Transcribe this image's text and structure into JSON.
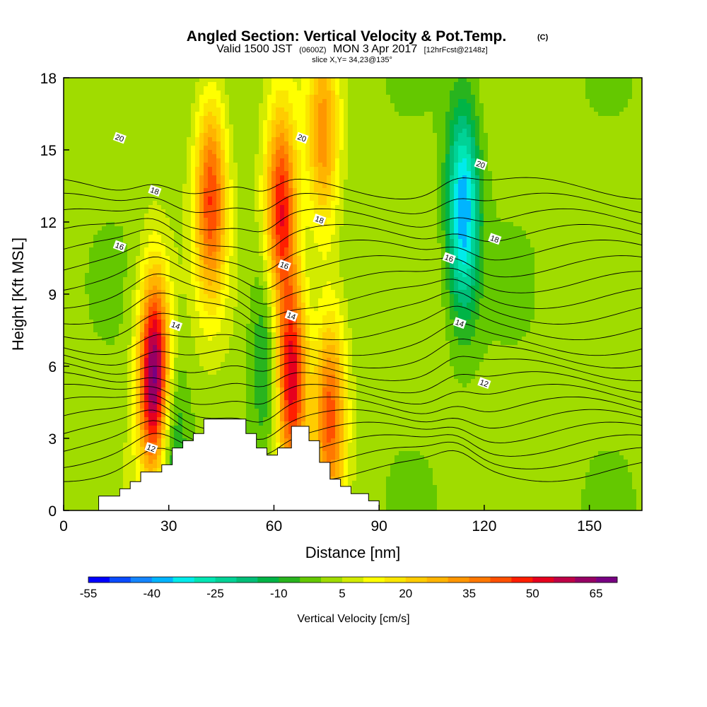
{
  "chart_data": {
    "type": "heatmap",
    "title": "Angled Section: Vertical Velocity & Pot.Temp.",
    "title_unit": "(C)",
    "subtitle": {
      "part1": "Valid 1500 JST",
      "part2": "(0600Z)",
      "part3": "MON 3 Apr 2017",
      "part4": "[12hrFcst@2148z]"
    },
    "slice_info": "slice X,Y= 34,23@135°",
    "xlabel": "Distance [nm]",
    "ylabel": "Height [Kft MSL]",
    "xlim": [
      0,
      165
    ],
    "ylim": [
      0,
      18
    ],
    "x_ticks": [
      "0",
      "30",
      "60",
      "90",
      "120",
      "150"
    ],
    "y_ticks": [
      "0",
      "3",
      "6",
      "9",
      "12",
      "15",
      "18"
    ],
    "colorbar": {
      "title": "Vertical Velocity [cm/s]",
      "labels": [
        "-55",
        "-40",
        "-25",
        "-10",
        "5",
        "20",
        "35",
        "50",
        "65"
      ],
      "colors": [
        "#0000ff",
        "#0a4bff",
        "#1485ff",
        "#00b4ff",
        "#00ebeb",
        "#00e6b4",
        "#00d296",
        "#00be78",
        "#00b446",
        "#28b41e",
        "#64c800",
        "#a0dc00",
        "#d2eb00",
        "#ffff00",
        "#fae600",
        "#ffcc00",
        "#ffb400",
        "#ff9600",
        "#ff7800",
        "#ff5000",
        "#ff1e00",
        "#e6001e",
        "#be0046",
        "#960064",
        "#780082"
      ]
    },
    "updrafts": [
      {
        "x": 26,
        "z": 5.5,
        "w": 70
      },
      {
        "x": 65,
        "z": 5.5,
        "w": 52
      },
      {
        "x": 76,
        "z": 4,
        "w": 40
      },
      {
        "x": 62,
        "z": 12.5,
        "w": 48
      },
      {
        "x": 42,
        "z": 13,
        "w": 42
      },
      {
        "x": 74,
        "z": 15.5,
        "w": 30
      }
    ],
    "downdrafts": [
      {
        "x": 114,
        "z": 12.5,
        "w": -42
      },
      {
        "x": 58,
        "z": 6.5,
        "w": -15
      },
      {
        "x": 30,
        "z": 3,
        "w": -20
      }
    ],
    "terrain": [
      [
        10,
        0.6
      ],
      [
        16,
        0.9
      ],
      [
        19,
        1.2
      ],
      [
        22,
        1.6
      ],
      [
        28,
        1.9
      ],
      [
        31,
        2.6
      ],
      [
        34,
        2.9
      ],
      [
        37,
        3.2
      ],
      [
        40,
        3.8
      ],
      [
        52,
        3.2
      ],
      [
        55,
        2.6
      ],
      [
        58,
        2.3
      ],
      [
        61,
        2.6
      ],
      [
        65,
        3.5
      ],
      [
        70,
        2.9
      ],
      [
        73,
        2.0
      ],
      [
        76,
        1.3
      ],
      [
        79,
        1.0
      ],
      [
        82,
        0.7
      ],
      [
        87,
        0.4
      ],
      [
        90,
        0
      ]
    ],
    "isentropes": [
      {
        "level": 12,
        "label": "12",
        "x": 25,
        "z": 2.6
      },
      {
        "level": 12,
        "label": "12",
        "x": 120,
        "z": 5.3
      },
      {
        "level": 14,
        "label": "14",
        "x": 32,
        "z": 7.7
      },
      {
        "level": 14,
        "label": "14",
        "x": 65,
        "z": 8.1
      },
      {
        "level": 14,
        "label": "14",
        "x": 113,
        "z": 7.8
      },
      {
        "level": 16,
        "label": "16",
        "x": 16,
        "z": 11.0
      },
      {
        "level": 16,
        "label": "16",
        "x": 63,
        "z": 10.2
      },
      {
        "level": 16,
        "label": "16",
        "x": 110,
        "z": 10.5
      },
      {
        "level": 18,
        "label": "18",
        "x": 26,
        "z": 13.3
      },
      {
        "level": 18,
        "label": "18",
        "x": 73,
        "z": 12.1
      },
      {
        "level": 18,
        "label": "18",
        "x": 123,
        "z": 11.3
      },
      {
        "level": 20,
        "label": "20",
        "x": 16,
        "z": 15.5
      },
      {
        "level": 20,
        "label": "20",
        "x": 68,
        "z": 15.5
      },
      {
        "level": 20,
        "label": "20",
        "x": 119,
        "z": 14.4
      }
    ]
  }
}
